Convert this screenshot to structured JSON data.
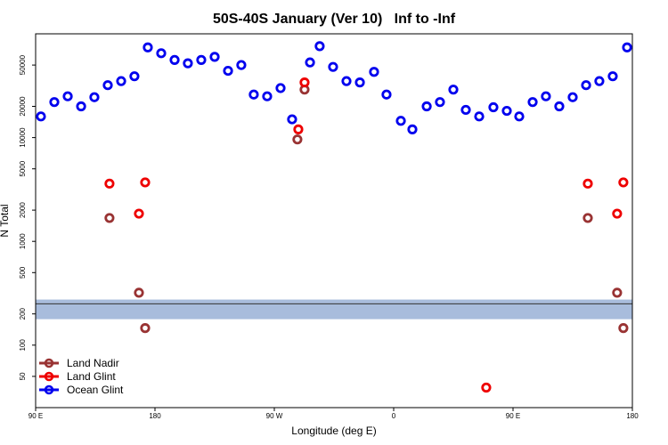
{
  "chart_data": {
    "type": "scatter",
    "title": "50S-40S January (Ver 10)   Inf to -Inf",
    "x_label": "Longitude (deg E)",
    "y_label": "N Total",
    "log_y": true,
    "legend": "bottom-left",
    "xlim": [
      90,
      540
    ],
    "ylim": [
      25,
      100000
    ],
    "xticks": [
      {
        "value": 90,
        "label": "90 E"
      },
      {
        "value": 180,
        "label": "180"
      },
      {
        "value": 270,
        "label": "90 W"
      },
      {
        "value": 360,
        "label": "0"
      },
      {
        "value": 450,
        "label": "90 E"
      },
      {
        "value": 540,
        "label": "180"
      }
    ],
    "yticks": [
      50,
      100,
      200,
      500,
      1000,
      2000,
      5000,
      10000,
      20000,
      50000
    ],
    "band": [
      178,
      275
    ],
    "band_color": "#a8bcdc",
    "reference_line": 250,
    "series": [
      {
        "name": "Land Nadir",
        "color": "#993333",
        "x": [
          145.7,
          167.9,
          172.6,
          287.4,
          292.8,
          506.4,
          528.5,
          533.2
        ],
        "values": [
          1680,
          320,
          146,
          9600,
          29000,
          1680,
          320,
          146
        ]
      },
      {
        "name": "Land Glint",
        "color": "#ee0000",
        "x": [
          145.7,
          167.9,
          172.6,
          288.1,
          292.8,
          429.8,
          506.4,
          528.5,
          533.2
        ],
        "values": [
          3600,
          1850,
          3700,
          12000,
          34000,
          39,
          3600,
          1850,
          3700
        ]
      },
      {
        "name": "Ocean Glint",
        "color": "#0000ee",
        "x": [
          94.0,
          104.1,
          114.2,
          124.3,
          134.3,
          144.4,
          154.5,
          164.5,
          174.6,
          184.7,
          194.8,
          204.8,
          214.9,
          225.0,
          235.1,
          245.1,
          254.5,
          264.6,
          274.7,
          283.4,
          296.9,
          304.2,
          314.3,
          324.4,
          334.5,
          345.2,
          354.6,
          365.4,
          374.1,
          384.9,
          394.9,
          405.0,
          414.4,
          424.5,
          435.2,
          445.3,
          454.7,
          464.8,
          474.8,
          484.9,
          495.0,
          505.1,
          515.1,
          525.2,
          536.0
        ],
        "values": [
          16000,
          22000,
          25000,
          20000,
          24500,
          32000,
          35000,
          39000,
          74000,
          65000,
          56000,
          52000,
          56000,
          60000,
          44000,
          50000,
          26000,
          25000,
          30000,
          15000,
          53000,
          76000,
          48000,
          35000,
          34000,
          43000,
          26000,
          14500,
          12000,
          20000,
          22000,
          29000,
          18500,
          16000,
          19600,
          18100,
          16000,
          22000,
          25000,
          20000,
          24500,
          32000,
          35000,
          39000,
          74000
        ]
      }
    ]
  }
}
